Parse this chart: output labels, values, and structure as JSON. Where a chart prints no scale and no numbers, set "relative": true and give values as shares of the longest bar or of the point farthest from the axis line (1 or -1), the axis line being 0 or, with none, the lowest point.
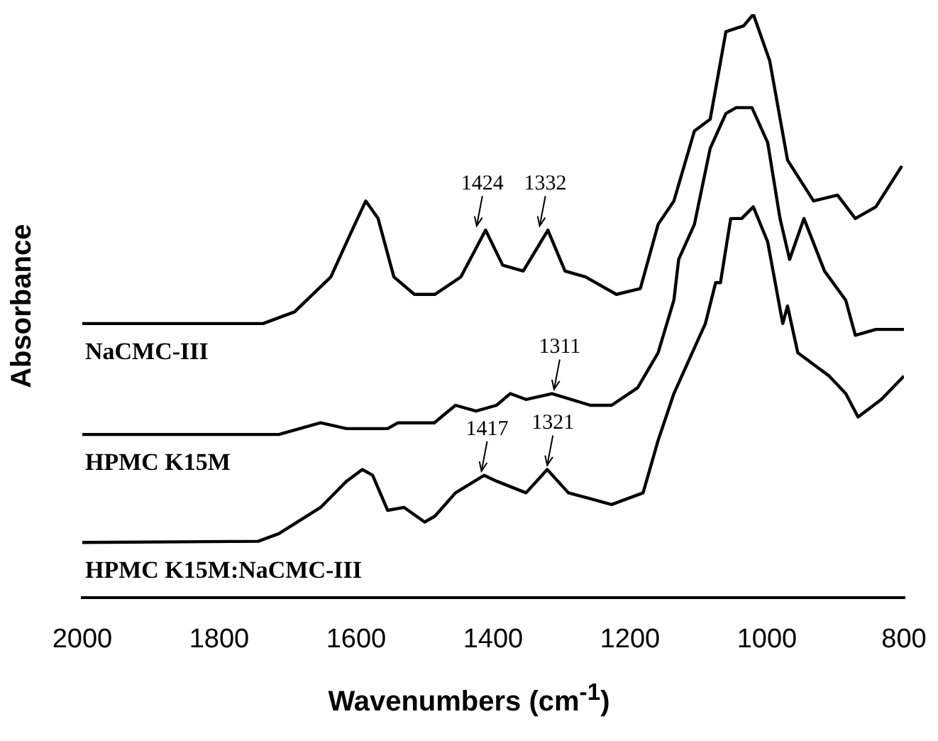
{
  "chart_data": {
    "type": "line",
    "relative": true,
    "xlabel": "Wavenumbers (cm$^{-1}$)",
    "ylabel": "Absorbance",
    "xlim": [
      2000,
      800
    ],
    "xticks": [
      2000,
      1800,
      1600,
      1400,
      1200,
      1000,
      800
    ],
    "grid": false,
    "legend": false,
    "marker": "none",
    "line_style": "solid",
    "series": [
      {
        "name": "NaCMC-III",
        "color": "#000000",
        "x": [
          2000,
          1736,
          1690,
          1637,
          1606,
          1586,
          1568,
          1545,
          1515,
          1485,
          1447,
          1411,
          1386,
          1356,
          1320,
          1295,
          1265,
          1220,
          1185,
          1159,
          1136,
          1106,
          1083,
          1060,
          1034,
          1020,
          996,
          970,
          932,
          897,
          871,
          841,
          803
        ],
        "values": [
          0.47,
          0.47,
          0.49,
          0.55,
          0.63,
          0.68,
          0.65,
          0.55,
          0.52,
          0.52,
          0.55,
          0.63,
          0.57,
          0.56,
          0.63,
          0.56,
          0.55,
          0.52,
          0.53,
          0.64,
          0.68,
          0.8,
          0.82,
          0.97,
          0.98,
          1.0,
          0.92,
          0.75,
          0.68,
          0.69,
          0.65,
          0.67,
          0.74
        ]
      },
      {
        "name": "HPMC K15M",
        "color": "#000000",
        "x": [
          2000,
          1713,
          1652,
          1614,
          1554,
          1539,
          1486,
          1455,
          1425,
          1395,
          1375,
          1352,
          1314,
          1258,
          1227,
          1189,
          1159,
          1136,
          1129,
          1106,
          1083,
          1060,
          1045,
          1022,
          999,
          981,
          967,
          946,
          916,
          885,
          871,
          841,
          800
        ],
        "values": [
          0.28,
          0.28,
          0.3,
          0.29,
          0.29,
          0.3,
          0.3,
          0.33,
          0.32,
          0.33,
          0.35,
          0.34,
          0.35,
          0.33,
          0.33,
          0.36,
          0.42,
          0.51,
          0.58,
          0.64,
          0.77,
          0.83,
          0.84,
          0.84,
          0.78,
          0.65,
          0.58,
          0.65,
          0.56,
          0.51,
          0.45,
          0.46,
          0.46
        ]
      },
      {
        "name": "HPMC K15M:NaCMC-III",
        "color": "#000000",
        "x": [
          2000,
          1743,
          1713,
          1652,
          1614,
          1591,
          1576,
          1554,
          1530,
          1500,
          1485,
          1455,
          1413,
          1395,
          1352,
          1321,
          1290,
          1258,
          1227,
          1181,
          1159,
          1136,
          1113,
          1090,
          1075,
          1068,
          1053,
          1037,
          1020,
          999,
          977,
          970,
          955,
          932,
          909,
          885,
          867,
          833,
          800
        ],
        "values": [
          0.095,
          0.097,
          0.11,
          0.155,
          0.2,
          0.22,
          0.21,
          0.15,
          0.155,
          0.13,
          0.14,
          0.18,
          0.21,
          0.2,
          0.18,
          0.22,
          0.18,
          0.17,
          0.16,
          0.18,
          0.27,
          0.35,
          0.41,
          0.47,
          0.54,
          0.54,
          0.65,
          0.65,
          0.67,
          0.61,
          0.47,
          0.5,
          0.42,
          0.4,
          0.38,
          0.35,
          0.31,
          0.34,
          0.38
        ]
      }
    ],
    "annotations": [
      {
        "text": "1424",
        "x": 1424,
        "y": 0.63
      },
      {
        "text": "1332",
        "x": 1332,
        "y": 0.63
      },
      {
        "text": "1311",
        "x": 1311,
        "y": 0.35
      },
      {
        "text": "1417",
        "x": 1417,
        "y": 0.21
      },
      {
        "text": "1321",
        "x": 1321,
        "y": 0.22
      }
    ]
  }
}
